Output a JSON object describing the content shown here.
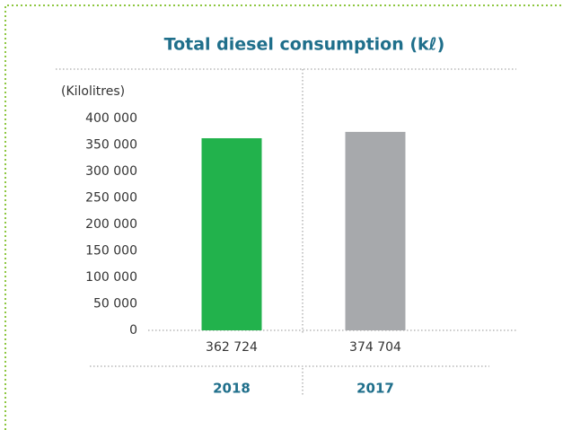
{
  "chart_data": {
    "type": "bar",
    "title": "Total diesel consumption (kℓ)",
    "y_label": "(Kilolitres)",
    "categories": [
      "2018",
      "2017"
    ],
    "values": [
      362724,
      374704
    ],
    "value_labels": [
      "362 724",
      "374 704"
    ],
    "colors": [
      "#22b24c",
      "#a7a9ac"
    ],
    "ylim": [
      0,
      400000
    ],
    "yticks": [
      0,
      {
        "value": 50000,
        "label": "50 000"
      },
      {
        "value": 100000,
        "label": "100 000"
      },
      {
        "value": 150000,
        "label": "150 000"
      },
      {
        "value": 200000,
        "label": "200 000"
      },
      {
        "value": 250000,
        "label": "250 000"
      },
      {
        "value": 300000,
        "label": "300 000"
      },
      {
        "value": 350000,
        "label": "350 000"
      },
      {
        "value": 400000,
        "label": "400 000"
      }
    ],
    "grid": false
  }
}
